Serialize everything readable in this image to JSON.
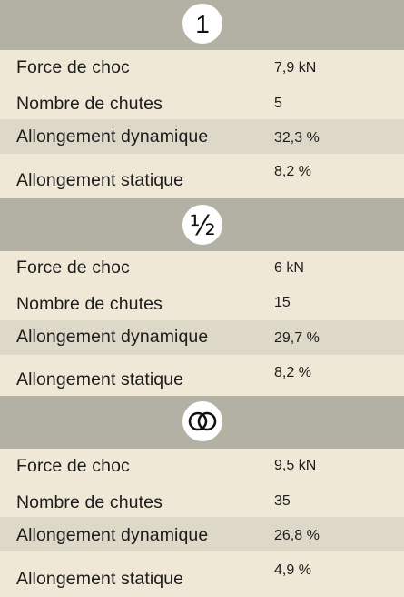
{
  "sections": [
    {
      "icon": "single-rope-icon",
      "badge_text": "1",
      "rows": [
        {
          "label": "Force de choc",
          "value": "7,9 kN"
        },
        {
          "label": "Nombre de chutes",
          "value": "5"
        },
        {
          "label": "Allongement dynamique",
          "value": "32,3 %"
        },
        {
          "label": "Allongement statique",
          "value": "8,2 %"
        }
      ]
    },
    {
      "icon": "half-rope-icon",
      "badge_text": "½",
      "rows": [
        {
          "label": "Force de choc",
          "value": "6 kN"
        },
        {
          "label": "Nombre de chutes",
          "value": "15"
        },
        {
          "label": "Allongement dynamique",
          "value": "29,7 %"
        },
        {
          "label": "Allongement statique",
          "value": "8,2 %"
        }
      ]
    },
    {
      "icon": "twin-rope-icon",
      "rows": [
        {
          "label": "Force de choc",
          "value": "9,5 kN"
        },
        {
          "label": "Nombre de chutes",
          "value": "35"
        },
        {
          "label": "Allongement dynamique",
          "value": "26,8 %"
        },
        {
          "label": "Allongement statique",
          "value": "4,9 %"
        }
      ]
    }
  ]
}
